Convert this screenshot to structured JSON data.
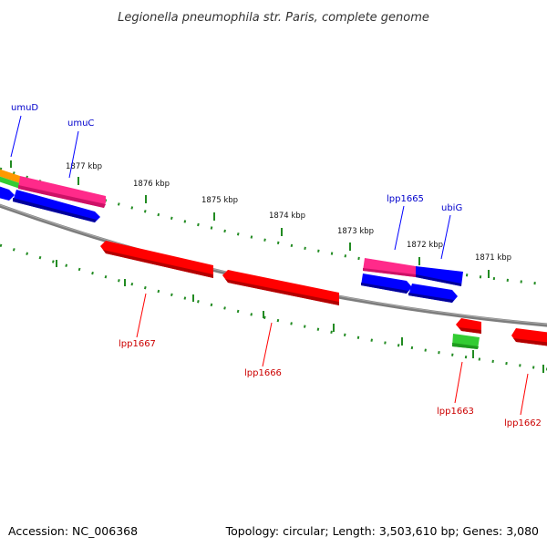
{
  "title": "Legionella pneumophila str. Paris, complete genome",
  "footer": {
    "accession": "Accession: NC_006368",
    "topology": "Topology: circular; Length: 3,503,610 bp; Genes: 3,080"
  },
  "colors": {
    "forward_label": "#0000cc",
    "reverse_label": "#cc0000",
    "backbone": "#7d7d7d",
    "tick": "#228b22",
    "red_gene": "#ff0000",
    "blue_gene": "#0000ff",
    "pink_gene": "#ff2a8a",
    "green_gene": "#33cc33",
    "orange_gene": "#ff9900"
  },
  "kbp_labels": [
    "1877 kbp",
    "1876 kbp",
    "1875 kbp",
    "1874 kbp",
    "1873 kbp",
    "1872 kbp",
    "1871 kbp"
  ],
  "gene_labels": {
    "umuD": "umuD",
    "umuC": "umuC",
    "lpp1665": "lpp1665",
    "ubiG": "ubiG",
    "lpp1667": "lpp1667",
    "lpp1666": "lpp1666",
    "lpp1663": "lpp1663",
    "lpp1662": "lpp1662"
  }
}
